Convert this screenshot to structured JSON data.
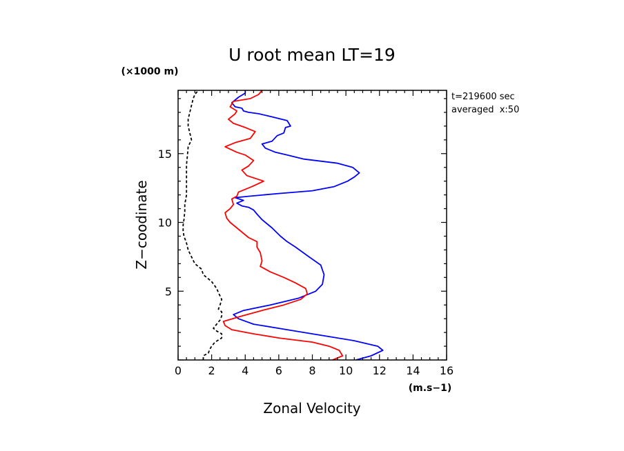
{
  "chart_data": {
    "type": "line",
    "title": "U root mean LT=19",
    "xlabel": "Zonal Velocity",
    "ylabel": "Z−coodinate",
    "x_unit": "(m.s−1)",
    "y_unit": "(×1000 m)",
    "xlim": [
      0,
      16
    ],
    "ylim": [
      0,
      19.6
    ],
    "x_ticks": [
      0,
      2,
      4,
      6,
      8,
      10,
      12,
      14,
      16
    ],
    "x_tick_labels": [
      "0",
      "2",
      "4",
      "6",
      "8",
      "10",
      "12",
      "14",
      "16"
    ],
    "y_ticks": [
      5,
      10,
      15
    ],
    "y_tick_labels": [
      "5",
      "10",
      "15"
    ],
    "annotations": [
      "t=219600 sec",
      "averaged  x:50"
    ],
    "grid": false,
    "series": [
      {
        "color": "#0000ff",
        "style": "solid",
        "points": [
          [
            10.6,
            0.0
          ],
          [
            11.5,
            0.3
          ],
          [
            12.2,
            0.7
          ],
          [
            11.9,
            1.0
          ],
          [
            10.5,
            1.4
          ],
          [
            8.5,
            1.8
          ],
          [
            6.5,
            2.2
          ],
          [
            4.5,
            2.6
          ],
          [
            3.6,
            3.0
          ],
          [
            3.3,
            3.3
          ],
          [
            3.9,
            3.6
          ],
          [
            5.5,
            4.0
          ],
          [
            7.2,
            4.5
          ],
          [
            8.2,
            5.0
          ],
          [
            8.6,
            5.5
          ],
          [
            8.7,
            6.2
          ],
          [
            8.5,
            6.9
          ],
          [
            7.8,
            7.5
          ],
          [
            7.0,
            8.2
          ],
          [
            6.5,
            8.6
          ],
          [
            6.1,
            9.0
          ],
          [
            5.6,
            9.6
          ],
          [
            5.0,
            10.2
          ],
          [
            4.7,
            10.6
          ],
          [
            4.5,
            10.9
          ],
          [
            4.2,
            11.1
          ],
          [
            3.8,
            11.2
          ],
          [
            3.5,
            11.4
          ],
          [
            3.9,
            11.6
          ],
          [
            3.4,
            11.8
          ],
          [
            4.2,
            11.9
          ],
          [
            6.0,
            12.1
          ],
          [
            8.0,
            12.3
          ],
          [
            9.3,
            12.6
          ],
          [
            10.1,
            13.0
          ],
          [
            10.5,
            13.3
          ],
          [
            10.8,
            13.6
          ],
          [
            10.4,
            14.0
          ],
          [
            9.5,
            14.3
          ],
          [
            7.5,
            14.6
          ],
          [
            6.5,
            14.9
          ],
          [
            5.8,
            15.1
          ],
          [
            5.2,
            15.4
          ],
          [
            5.0,
            15.7
          ],
          [
            5.6,
            15.9
          ],
          [
            5.9,
            16.3
          ],
          [
            6.3,
            16.5
          ],
          [
            6.4,
            16.9
          ],
          [
            6.7,
            17.0
          ],
          [
            6.5,
            17.4
          ],
          [
            5.5,
            17.7
          ],
          [
            4.8,
            17.9
          ],
          [
            4.2,
            18.0
          ],
          [
            3.9,
            18.1
          ],
          [
            3.8,
            18.3
          ],
          [
            3.4,
            18.4
          ],
          [
            3.2,
            18.7
          ],
          [
            3.6,
            19.1
          ],
          [
            4.0,
            19.4
          ],
          [
            4.0,
            19.6
          ]
        ]
      },
      {
        "color": "#ff0000",
        "style": "solid",
        "points": [
          [
            9.2,
            0.0
          ],
          [
            9.8,
            0.3
          ],
          [
            9.6,
            0.7
          ],
          [
            9.0,
            1.0
          ],
          [
            8.0,
            1.3
          ],
          [
            6.0,
            1.6
          ],
          [
            4.5,
            1.9
          ],
          [
            3.2,
            2.2
          ],
          [
            2.8,
            2.5
          ],
          [
            2.7,
            2.8
          ],
          [
            3.8,
            3.2
          ],
          [
            5.0,
            3.6
          ],
          [
            6.3,
            4.0
          ],
          [
            7.3,
            4.4
          ],
          [
            7.7,
            4.8
          ],
          [
            7.6,
            5.2
          ],
          [
            7.0,
            5.6
          ],
          [
            6.3,
            6.0
          ],
          [
            5.5,
            6.4
          ],
          [
            4.9,
            6.8
          ],
          [
            5.0,
            7.2
          ],
          [
            4.9,
            7.8
          ],
          [
            4.7,
            8.2
          ],
          [
            4.7,
            8.6
          ],
          [
            4.2,
            8.9
          ],
          [
            3.8,
            9.3
          ],
          [
            3.4,
            9.7
          ],
          [
            3.1,
            10.0
          ],
          [
            2.9,
            10.3
          ],
          [
            2.8,
            10.7
          ],
          [
            3.1,
            11.0
          ],
          [
            3.3,
            11.3
          ],
          [
            3.2,
            11.7
          ],
          [
            3.5,
            11.9
          ],
          [
            3.6,
            12.2
          ],
          [
            4.4,
            12.6
          ],
          [
            5.1,
            13.0
          ],
          [
            4.6,
            13.2
          ],
          [
            4.1,
            13.4
          ],
          [
            3.8,
            13.8
          ],
          [
            4.2,
            14.1
          ],
          [
            4.5,
            14.5
          ],
          [
            4.0,
            14.9
          ],
          [
            3.5,
            15.1
          ],
          [
            2.8,
            15.5
          ],
          [
            3.4,
            15.8
          ],
          [
            4.3,
            16.1
          ],
          [
            4.6,
            16.6
          ],
          [
            4.0,
            16.9
          ],
          [
            3.3,
            17.2
          ],
          [
            3.0,
            17.5
          ],
          [
            3.4,
            17.9
          ],
          [
            3.5,
            18.1
          ],
          [
            3.1,
            18.4
          ],
          [
            3.3,
            18.8
          ],
          [
            4.3,
            19.0
          ],
          [
            4.8,
            19.3
          ],
          [
            5.0,
            19.6
          ]
        ]
      },
      {
        "color": "#000000",
        "style": "dashed",
        "points": [
          [
            1.5,
            0.0
          ],
          [
            1.5,
            0.3
          ],
          [
            1.8,
            0.5
          ],
          [
            1.9,
            0.8
          ],
          [
            2.0,
            1.0
          ],
          [
            2.2,
            1.3
          ],
          [
            2.6,
            1.6
          ],
          [
            2.6,
            1.9
          ],
          [
            2.3,
            2.1
          ],
          [
            2.1,
            2.3
          ],
          [
            2.3,
            2.6
          ],
          [
            2.5,
            2.9
          ],
          [
            2.6,
            3.2
          ],
          [
            2.6,
            3.5
          ],
          [
            2.4,
            3.7
          ],
          [
            2.5,
            4.0
          ],
          [
            2.6,
            4.4
          ],
          [
            2.4,
            4.9
          ],
          [
            2.3,
            5.2
          ],
          [
            2.0,
            5.7
          ],
          [
            1.5,
            6.2
          ],
          [
            1.4,
            6.6
          ],
          [
            1.0,
            7.0
          ],
          [
            0.8,
            7.5
          ],
          [
            0.6,
            8.0
          ],
          [
            0.5,
            8.5
          ],
          [
            0.35,
            9.0
          ],
          [
            0.3,
            9.4
          ],
          [
            0.3,
            9.8
          ],
          [
            0.35,
            10.2
          ],
          [
            0.4,
            10.8
          ],
          [
            0.4,
            11.3
          ],
          [
            0.5,
            12.0
          ],
          [
            0.5,
            12.8
          ],
          [
            0.5,
            13.5
          ],
          [
            0.5,
            14.2
          ],
          [
            0.55,
            14.8
          ],
          [
            0.6,
            15.5
          ],
          [
            0.8,
            16.0
          ],
          [
            0.7,
            16.5
          ],
          [
            0.6,
            17.0
          ],
          [
            0.6,
            17.5
          ],
          [
            0.7,
            18.0
          ],
          [
            0.8,
            18.5
          ],
          [
            0.9,
            19.0
          ],
          [
            1.0,
            19.3
          ],
          [
            1.2,
            19.6
          ]
        ]
      }
    ]
  }
}
